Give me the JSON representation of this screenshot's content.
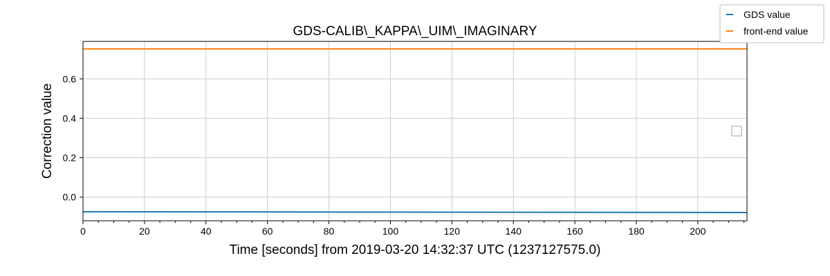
{
  "chart_data": {
    "type": "line",
    "title": "GDS-CALIB\\_KAPPA\\_UIM\\_IMAGINARY",
    "xlabel": "Time [seconds] from 2019-03-20 14:32:37 UTC (1237127575.0)",
    "ylabel": "Correction value",
    "xlim": [
      0,
      216
    ],
    "ylim": [
      -0.12,
      0.79
    ],
    "x_ticks": [
      0,
      20,
      40,
      60,
      80,
      100,
      120,
      140,
      160,
      180,
      200
    ],
    "x_tick_labels": [
      "0",
      "20",
      "40",
      "60",
      "80",
      "100",
      "120",
      "140",
      "160",
      "180",
      "200"
    ],
    "y_ticks": [
      0.0,
      0.2,
      0.4,
      0.6
    ],
    "y_tick_labels": [
      "0.0",
      "0.2",
      "0.4",
      "0.6"
    ],
    "grid": true,
    "legend_position": "top-right",
    "series": [
      {
        "name": "GDS value",
        "color": "#1f77b4",
        "x": [
          0,
          216
        ],
        "y": [
          -0.074,
          -0.078
        ]
      },
      {
        "name": "front-end value",
        "color": "#ff7f0e",
        "x": [
          0,
          216
        ],
        "y": [
          0.752,
          0.752
        ]
      }
    ]
  }
}
